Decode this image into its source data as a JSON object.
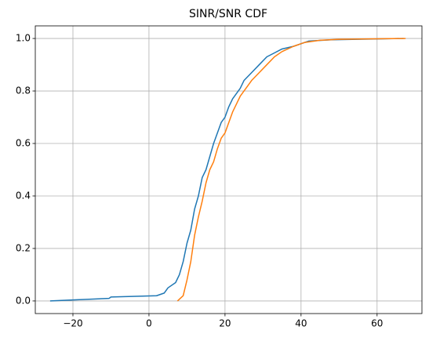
{
  "chart_data": {
    "type": "line",
    "title": "SINR/SNR CDF",
    "series": [
      {
        "color": "#1f77b4",
        "x": [
          -26,
          -10.5,
          -10,
          2,
          4,
          5,
          7,
          8,
          9,
          10,
          11,
          12,
          13,
          14,
          15,
          16,
          17,
          18,
          19,
          20,
          21,
          22,
          24,
          25,
          27,
          29,
          31,
          33,
          35,
          38,
          40,
          42,
          48,
          67
        ],
        "values": [
          0,
          0.01,
          0.015,
          0.02,
          0.03,
          0.05,
          0.07,
          0.1,
          0.15,
          0.22,
          0.27,
          0.35,
          0.4,
          0.47,
          0.5,
          0.55,
          0.6,
          0.64,
          0.68,
          0.7,
          0.74,
          0.77,
          0.81,
          0.84,
          0.87,
          0.9,
          0.93,
          0.945,
          0.96,
          0.97,
          0.98,
          0.99,
          0.995,
          1.0
        ]
      },
      {
        "color": "#ff7f0e",
        "x": [
          7.5,
          9,
          10,
          11,
          12,
          13,
          14,
          15,
          16,
          17,
          18,
          19,
          20,
          21,
          22,
          23,
          24,
          25,
          27,
          29,
          31,
          33,
          35,
          38,
          41,
          45,
          50,
          67.5
        ],
        "values": [
          0,
          0.02,
          0.08,
          0.15,
          0.25,
          0.32,
          0.38,
          0.45,
          0.5,
          0.53,
          0.58,
          0.62,
          0.64,
          0.68,
          0.72,
          0.75,
          0.78,
          0.8,
          0.84,
          0.87,
          0.9,
          0.93,
          0.95,
          0.97,
          0.985,
          0.993,
          0.997,
          1.0
        ]
      }
    ],
    "xlim": [
      -29.9,
      71.8
    ],
    "xticks": [
      {
        "value": -20,
        "label": "−20"
      },
      0,
      20,
      40,
      60
    ],
    "ylim": [
      -0.048,
      1.048
    ],
    "yticks": [
      {
        "value": 0,
        "label": "0.0"
      },
      0.2,
      0.4,
      0.6,
      0.8,
      {
        "value": 1,
        "label": "1.0"
      }
    ],
    "grid": true
  }
}
